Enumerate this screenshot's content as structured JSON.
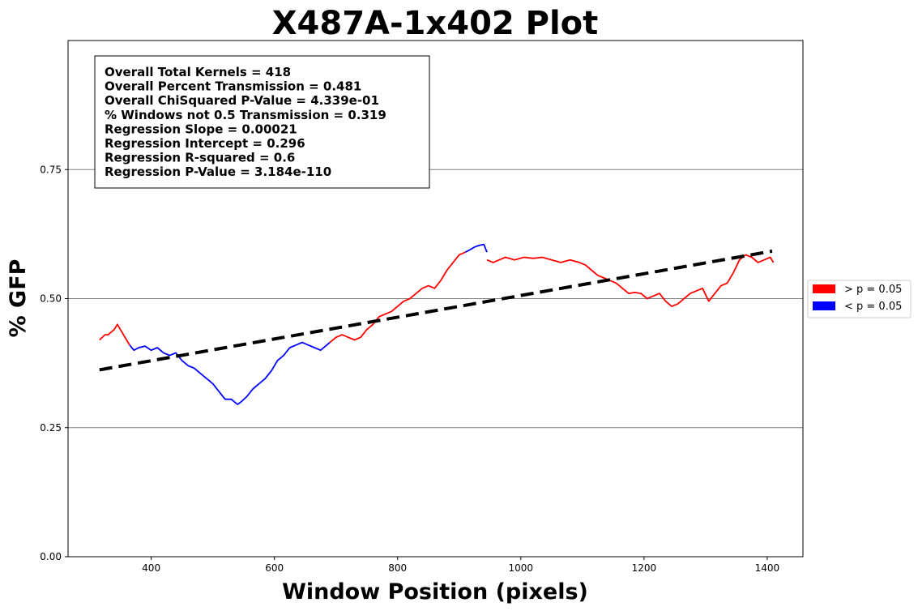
{
  "chart_data": {
    "type": "line",
    "title": "X487A-1x402 Plot",
    "xlabel": "Window Position (pixels)",
    "ylabel": "% GFP",
    "xlim": [
      265,
      1458
    ],
    "ylim": [
      0,
      1.0
    ],
    "xticks": [
      400,
      600,
      800,
      1000,
      1200,
      1400
    ],
    "yticks": [
      0.0,
      0.25,
      0.5,
      0.75
    ],
    "ytick_labels": [
      "0.00",
      "0.25",
      "0.50",
      "0.75"
    ],
    "grid": "horizontal",
    "legend_placement": "right, outside",
    "legend": [
      {
        "label": "> p = 0.05",
        "color": "#ff0000"
      },
      {
        "label": "< p = 0.05",
        "color": "#0000ff"
      }
    ],
    "stats_box": [
      "Overall Total Kernels = 418",
      "Overall Percent Transmission = 0.481",
      "Overall ChiSquared P-Value = 4.339e-01",
      "% Windows not 0.5 Transmission = 0.319",
      "Regression Slope = 0.00021",
      "Regression Intercept = 0.296",
      "Regression R-squared = 0.6",
      "Regression P-Value = 3.184e-110"
    ],
    "regression_line": {
      "x": [
        316,
        1408
      ],
      "y": [
        0.362,
        0.592
      ],
      "color": "#000000",
      "style": "dashed"
    },
    "series": [
      {
        "color": "#ff0000",
        "x": [
          316,
          325,
          330,
          340,
          345,
          350,
          355,
          360,
          365
        ],
        "y": [
          0.42,
          0.43,
          0.43,
          0.44,
          0.45,
          0.44,
          0.43,
          0.42,
          0.41
        ]
      },
      {
        "color": "#0000ff",
        "x": [
          365,
          372,
          380,
          390,
          400,
          410,
          420,
          430,
          440,
          450,
          460,
          470,
          480,
          490,
          500,
          510,
          520,
          530,
          540,
          546,
          555,
          565,
          575,
          585,
          595,
          605,
          615,
          625,
          635,
          645,
          655,
          665,
          675,
          685,
          690
        ],
        "y": [
          0.41,
          0.4,
          0.405,
          0.408,
          0.4,
          0.405,
          0.395,
          0.39,
          0.395,
          0.38,
          0.37,
          0.365,
          0.355,
          0.345,
          0.335,
          0.32,
          0.305,
          0.305,
          0.295,
          0.3,
          0.31,
          0.325,
          0.335,
          0.345,
          0.36,
          0.38,
          0.39,
          0.405,
          0.41,
          0.415,
          0.41,
          0.405,
          0.4,
          0.41,
          0.415
        ]
      },
      {
        "color": "#ff0000",
        "x": [
          690,
          700,
          710,
          720,
          730,
          740,
          750,
          760,
          770,
          780,
          790,
          800,
          810,
          820,
          830,
          840,
          850,
          860,
          870,
          880,
          890,
          900,
          910
        ],
        "y": [
          0.415,
          0.425,
          0.43,
          0.425,
          0.42,
          0.425,
          0.44,
          0.45,
          0.465,
          0.47,
          0.475,
          0.485,
          0.495,
          0.5,
          0.51,
          0.52,
          0.525,
          0.52,
          0.535,
          0.555,
          0.57,
          0.585,
          0.59
        ]
      },
      {
        "color": "#0000ff",
        "x": [
          910,
          918,
          925,
          932,
          940,
          945
        ],
        "y": [
          0.59,
          0.595,
          0.6,
          0.603,
          0.605,
          0.59
        ]
      },
      {
        "color": "#ff0000",
        "x": [
          945,
          955,
          965,
          975,
          990,
          1005,
          1020,
          1035,
          1050,
          1065,
          1080,
          1095,
          1105,
          1115,
          1125,
          1135,
          1145,
          1155,
          1165,
          1175,
          1185,
          1195,
          1205,
          1215,
          1225,
          1235,
          1245,
          1255,
          1265,
          1275,
          1285,
          1295,
          1305,
          1315,
          1325,
          1335,
          1345,
          1355,
          1365,
          1375,
          1385,
          1395,
          1405,
          1410
        ],
        "y": [
          0.575,
          0.57,
          0.575,
          0.58,
          0.575,
          0.58,
          0.578,
          0.58,
          0.575,
          0.57,
          0.575,
          0.57,
          0.565,
          0.555,
          0.545,
          0.54,
          0.535,
          0.53,
          0.52,
          0.51,
          0.512,
          0.51,
          0.5,
          0.505,
          0.51,
          0.495,
          0.485,
          0.49,
          0.5,
          0.51,
          0.515,
          0.52,
          0.495,
          0.51,
          0.525,
          0.53,
          0.55,
          0.575,
          0.585,
          0.58,
          0.57,
          0.575,
          0.58,
          0.57
        ]
      }
    ]
  }
}
